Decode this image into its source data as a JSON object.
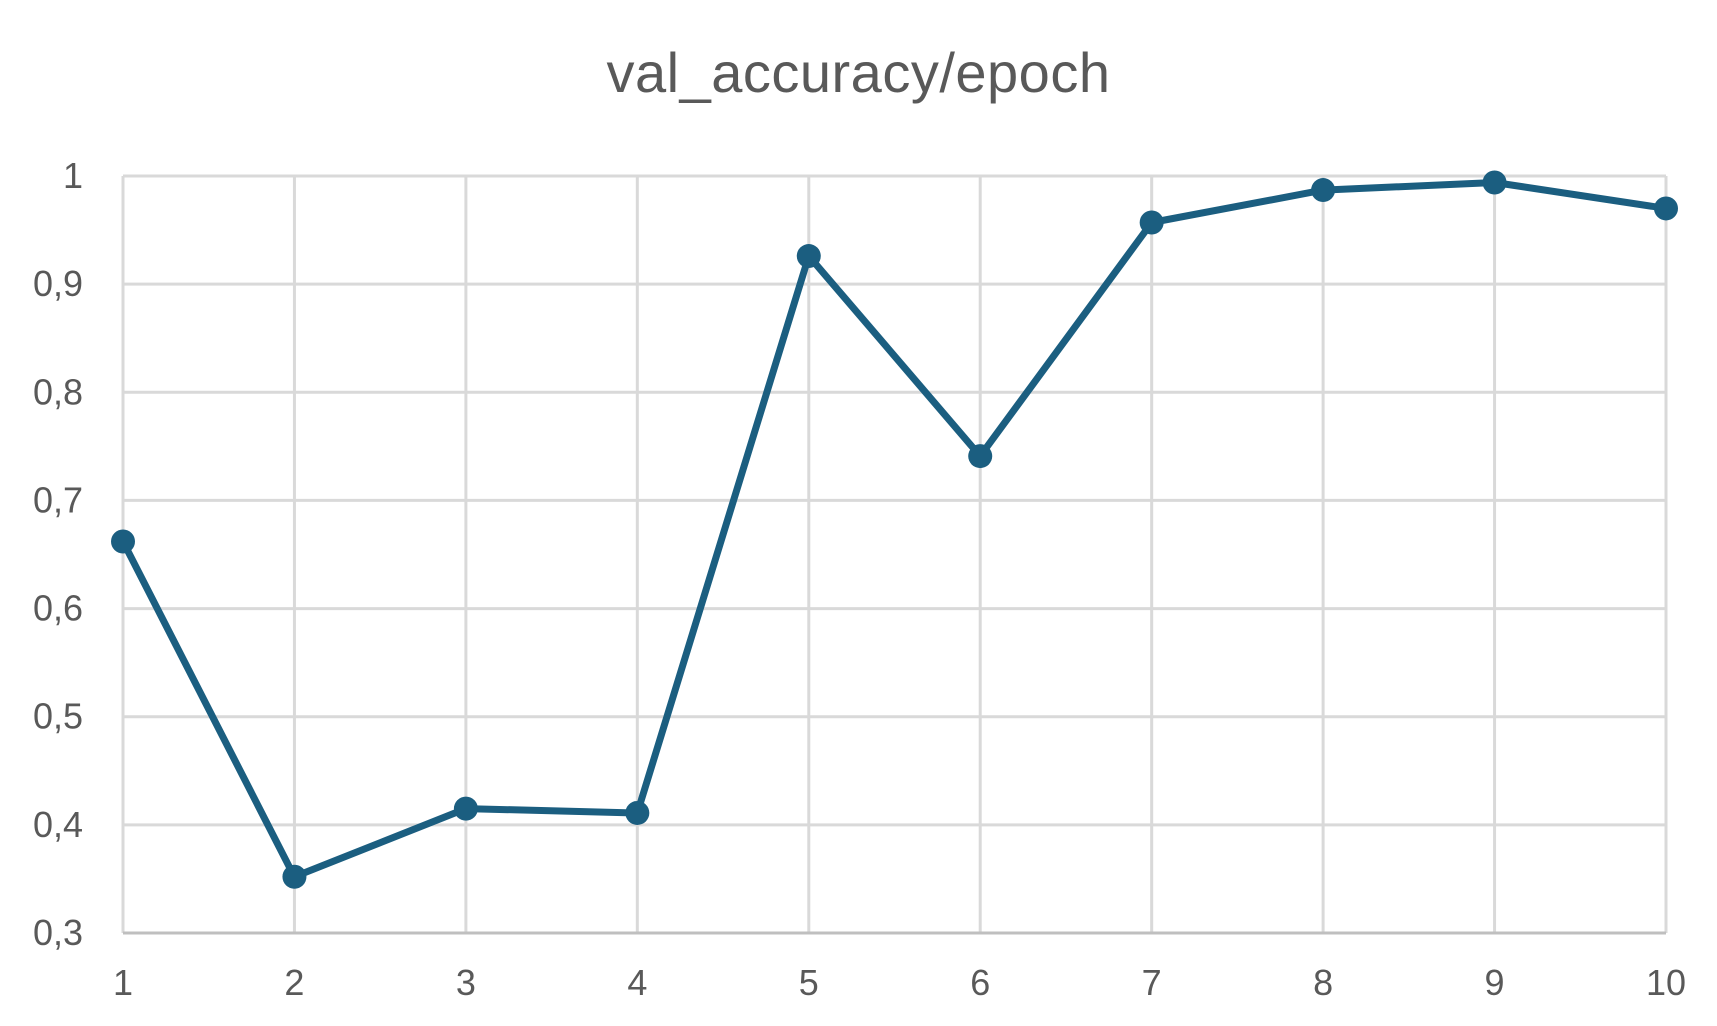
{
  "chart_data": {
    "type": "line",
    "title": "val_accuracy/epoch",
    "xlabel": "",
    "ylabel": "",
    "categories": [
      "1",
      "2",
      "3",
      "4",
      "5",
      "6",
      "7",
      "8",
      "9",
      "10"
    ],
    "x": [
      1,
      2,
      3,
      4,
      5,
      6,
      7,
      8,
      9,
      10
    ],
    "series": [
      {
        "values": [
          0.662,
          0.352,
          0.415,
          0.411,
          0.926,
          0.741,
          0.957,
          0.987,
          0.994,
          0.97
        ],
        "color": "#1b5e80",
        "marker": "circle"
      }
    ],
    "ylim": [
      0.3,
      1.0
    ],
    "yticks": [
      0.3,
      0.4,
      0.5,
      0.6,
      0.7,
      0.8,
      0.9,
      1.0
    ],
    "ytick_labels": [
      "0,3",
      "0,4",
      "0,5",
      "0,6",
      "0,7",
      "0,8",
      "0,9",
      "1"
    ],
    "xtick_labels": [
      "1",
      "2",
      "3",
      "4",
      "5",
      "6",
      "7",
      "8",
      "9",
      "10"
    ],
    "grid": true,
    "legend": "none"
  }
}
